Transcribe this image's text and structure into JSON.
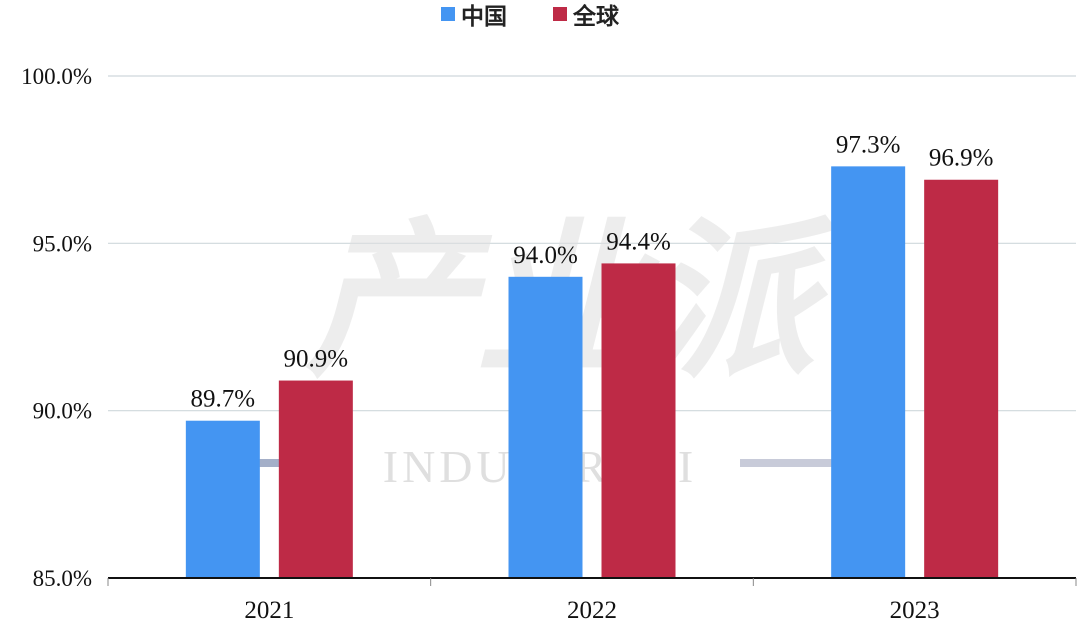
{
  "chart_data": {
    "type": "bar",
    "categories": [
      "2021",
      "2022",
      "2023"
    ],
    "series": [
      {
        "name": "中国",
        "values": [
          89.7,
          94.0,
          97.3
        ],
        "color": "#4495f2"
      },
      {
        "name": "全球",
        "values": [
          90.9,
          94.4,
          96.9
        ],
        "color": "#be2a46"
      }
    ],
    "data_labels": [
      [
        "89.7%",
        "94.0%",
        "97.3%"
      ],
      [
        "90.9%",
        "94.4%",
        "96.9%"
      ]
    ],
    "y_ticks": [
      85,
      90,
      95,
      100
    ],
    "y_tick_labels": [
      "85.0%",
      "90.0%",
      "95.0%",
      "100.0%"
    ],
    "ylim": [
      85,
      100
    ],
    "grid": true,
    "legend_position": "top-center",
    "title": "",
    "xlabel": "",
    "ylabel": ""
  },
  "watermark": {
    "main": "产业派",
    "sub": "INDUSTRY II"
  }
}
